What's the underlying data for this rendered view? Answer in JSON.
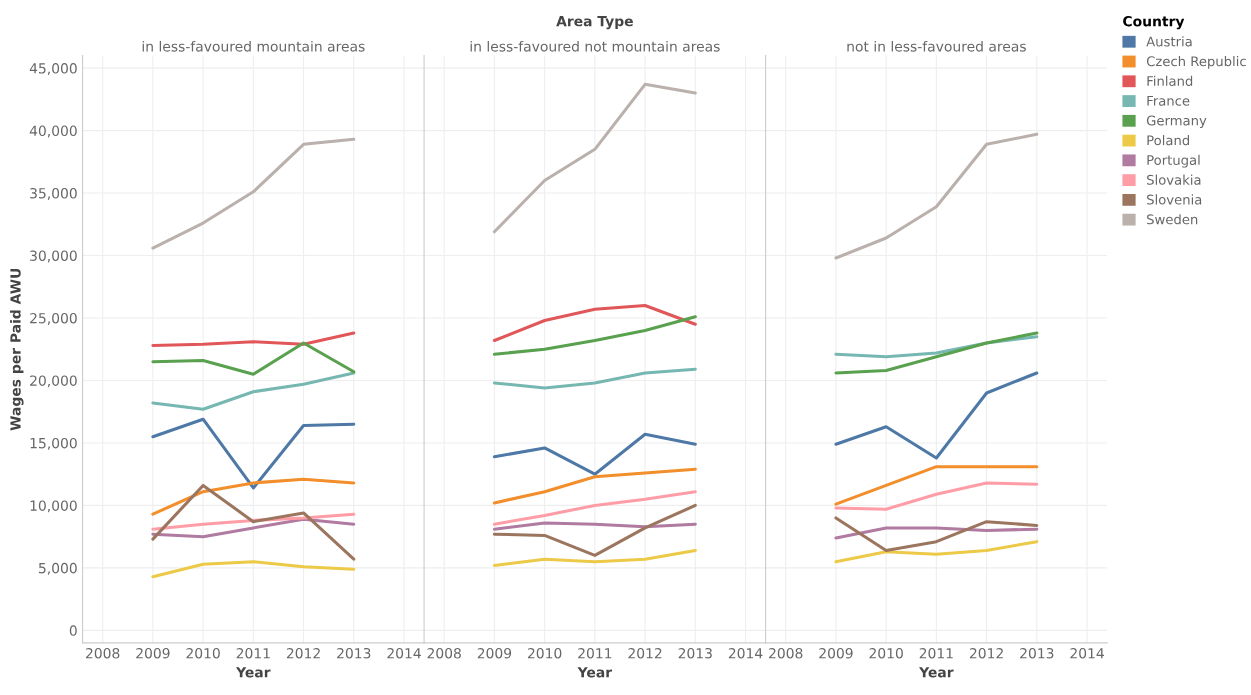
{
  "chart_data": [
    {
      "type": "line",
      "title": "in less-favoured mountain areas",
      "xlabel": "Year",
      "ylabel": "Wages per Paid AWU",
      "x": [
        2009,
        2010,
        2011,
        2012,
        2013
      ],
      "xlim": [
        2007.6,
        2014.4
      ],
      "xticks": [
        2008,
        2009,
        2010,
        2011,
        2012,
        2013,
        2014
      ],
      "ylim": [
        -1000,
        46000
      ],
      "yticks": [
        {
          "value": 0,
          "label": "0"
        },
        {
          "value": 5000,
          "label": "5,000"
        },
        {
          "value": 10000,
          "label": "10,000"
        },
        {
          "value": 15000,
          "label": "15,000"
        },
        {
          "value": 20000,
          "label": "20,000"
        },
        {
          "value": 25000,
          "label": "25,000"
        },
        {
          "value": 30000,
          "label": "30,000"
        },
        {
          "value": 35000,
          "label": "35,000"
        },
        {
          "value": 40000,
          "label": "40,000"
        },
        {
          "value": 45000,
          "label": "45,000"
        }
      ],
      "grid": true,
      "legend": "right",
      "legend_title": "Country",
      "series": [
        {
          "name": "Austria",
          "color": "#4e79a7",
          "values": [
            15500,
            16900,
            11400,
            16400,
            16500
          ]
        },
        {
          "name": "Czech Republic",
          "color": "#f28e2b",
          "values": [
            9300,
            11100,
            11800,
            12100,
            11800
          ]
        },
        {
          "name": "Finland",
          "color": "#e15759",
          "values": [
            22800,
            22900,
            23100,
            22900,
            23800
          ]
        },
        {
          "name": "France",
          "color": "#76b7b2",
          "values": [
            18200,
            17700,
            19100,
            19700,
            20600
          ]
        },
        {
          "name": "Germany",
          "color": "#59a14f",
          "values": [
            21500,
            21600,
            20500,
            23000,
            20700
          ]
        },
        {
          "name": "Poland",
          "color": "#edc948",
          "values": [
            4300,
            5300,
            5500,
            5100,
            4900
          ]
        },
        {
          "name": "Portugal",
          "color": "#b07aa1",
          "values": [
            7700,
            7500,
            8200,
            8900,
            8500
          ]
        },
        {
          "name": "Slovakia",
          "color": "#ff9da7",
          "values": [
            8100,
            8500,
            8800,
            9000,
            9300
          ]
        },
        {
          "name": "Slovenia",
          "color": "#9c755f",
          "values": [
            7300,
            11600,
            8700,
            9400,
            5700
          ]
        },
        {
          "name": "Sweden",
          "color": "#bab0ac",
          "values": [
            30600,
            32600,
            35100,
            38900,
            39300
          ]
        }
      ]
    },
    {
      "type": "line",
      "title": "in less-favoured not mountain areas",
      "annotations": [
        "Area Type"
      ],
      "xlabel": "Year",
      "x": [
        2009,
        2010,
        2011,
        2012,
        2013
      ],
      "xlim": [
        2007.6,
        2014.4
      ],
      "xticks": [
        2008,
        2009,
        2010,
        2011,
        2012,
        2013,
        2014
      ],
      "ylim": [
        -1000,
        46000
      ],
      "yticks": [
        0,
        5000,
        10000,
        15000,
        20000,
        25000,
        30000,
        35000,
        40000,
        45000
      ],
      "grid": true,
      "tick_labels": "x",
      "series": [
        {
          "color": "#4e79a7",
          "values": [
            13900,
            14600,
            12500,
            15700,
            14900
          ]
        },
        {
          "color": "#f28e2b",
          "values": [
            10200,
            11100,
            12300,
            12600,
            12900
          ]
        },
        {
          "color": "#e15759",
          "values": [
            23200,
            24800,
            25700,
            26000,
            24500
          ]
        },
        {
          "color": "#76b7b2",
          "values": [
            19800,
            19400,
            19800,
            20600,
            20900
          ]
        },
        {
          "color": "#59a14f",
          "values": [
            22100,
            22500,
            23200,
            24000,
            25100
          ]
        },
        {
          "color": "#edc948",
          "values": [
            5200,
            5700,
            5500,
            5700,
            6400
          ]
        },
        {
          "color": "#b07aa1",
          "values": [
            8100,
            8600,
            8500,
            8300,
            8500
          ]
        },
        {
          "color": "#ff9da7",
          "values": [
            8500,
            9200,
            10000,
            10500,
            11100
          ]
        },
        {
          "color": "#9c755f",
          "values": [
            7700,
            7600,
            6000,
            8200,
            10000
          ]
        },
        {
          "color": "#bab0ac",
          "values": [
            31900,
            36000,
            38500,
            43700,
            43000
          ]
        }
      ]
    },
    {
      "type": "line",
      "title": "not in less-favoured areas",
      "xlabel": "Year",
      "x": [
        2009,
        2010,
        2011,
        2012,
        2013
      ],
      "xlim": [
        2007.6,
        2014.4
      ],
      "xticks": [
        2008,
        2009,
        2010,
        2011,
        2012,
        2013,
        2014
      ],
      "ylim": [
        -1000,
        46000
      ],
      "yticks": [
        0,
        5000,
        10000,
        15000,
        20000,
        25000,
        30000,
        35000,
        40000,
        45000
      ],
      "grid": true,
      "tick_labels": "x",
      "series": [
        {
          "color": "#4e79a7",
          "values": [
            14900,
            16300,
            13800,
            19000,
            20600
          ]
        },
        {
          "color": "#f28e2b",
          "values": [
            10100,
            11600,
            13100,
            13100,
            13100
          ]
        },
        {
          "color": "#76b7b2",
          "values": [
            22100,
            21900,
            22200,
            23000,
            23500
          ]
        },
        {
          "color": "#59a14f",
          "values": [
            20600,
            20800,
            21900,
            23000,
            23800
          ]
        },
        {
          "color": "#edc948",
          "values": [
            5500,
            6300,
            6100,
            6400,
            7100
          ]
        },
        {
          "color": "#b07aa1",
          "values": [
            7400,
            8200,
            8200,
            8000,
            8100
          ]
        },
        {
          "color": "#ff9da7",
          "values": [
            9800,
            9700,
            10900,
            11800,
            11700
          ]
        },
        {
          "color": "#9c755f",
          "values": [
            9000,
            6400,
            7100,
            8700,
            8400
          ]
        },
        {
          "color": "#bab0ac",
          "values": [
            29800,
            31400,
            33900,
            38900,
            39700
          ]
        }
      ]
    }
  ]
}
